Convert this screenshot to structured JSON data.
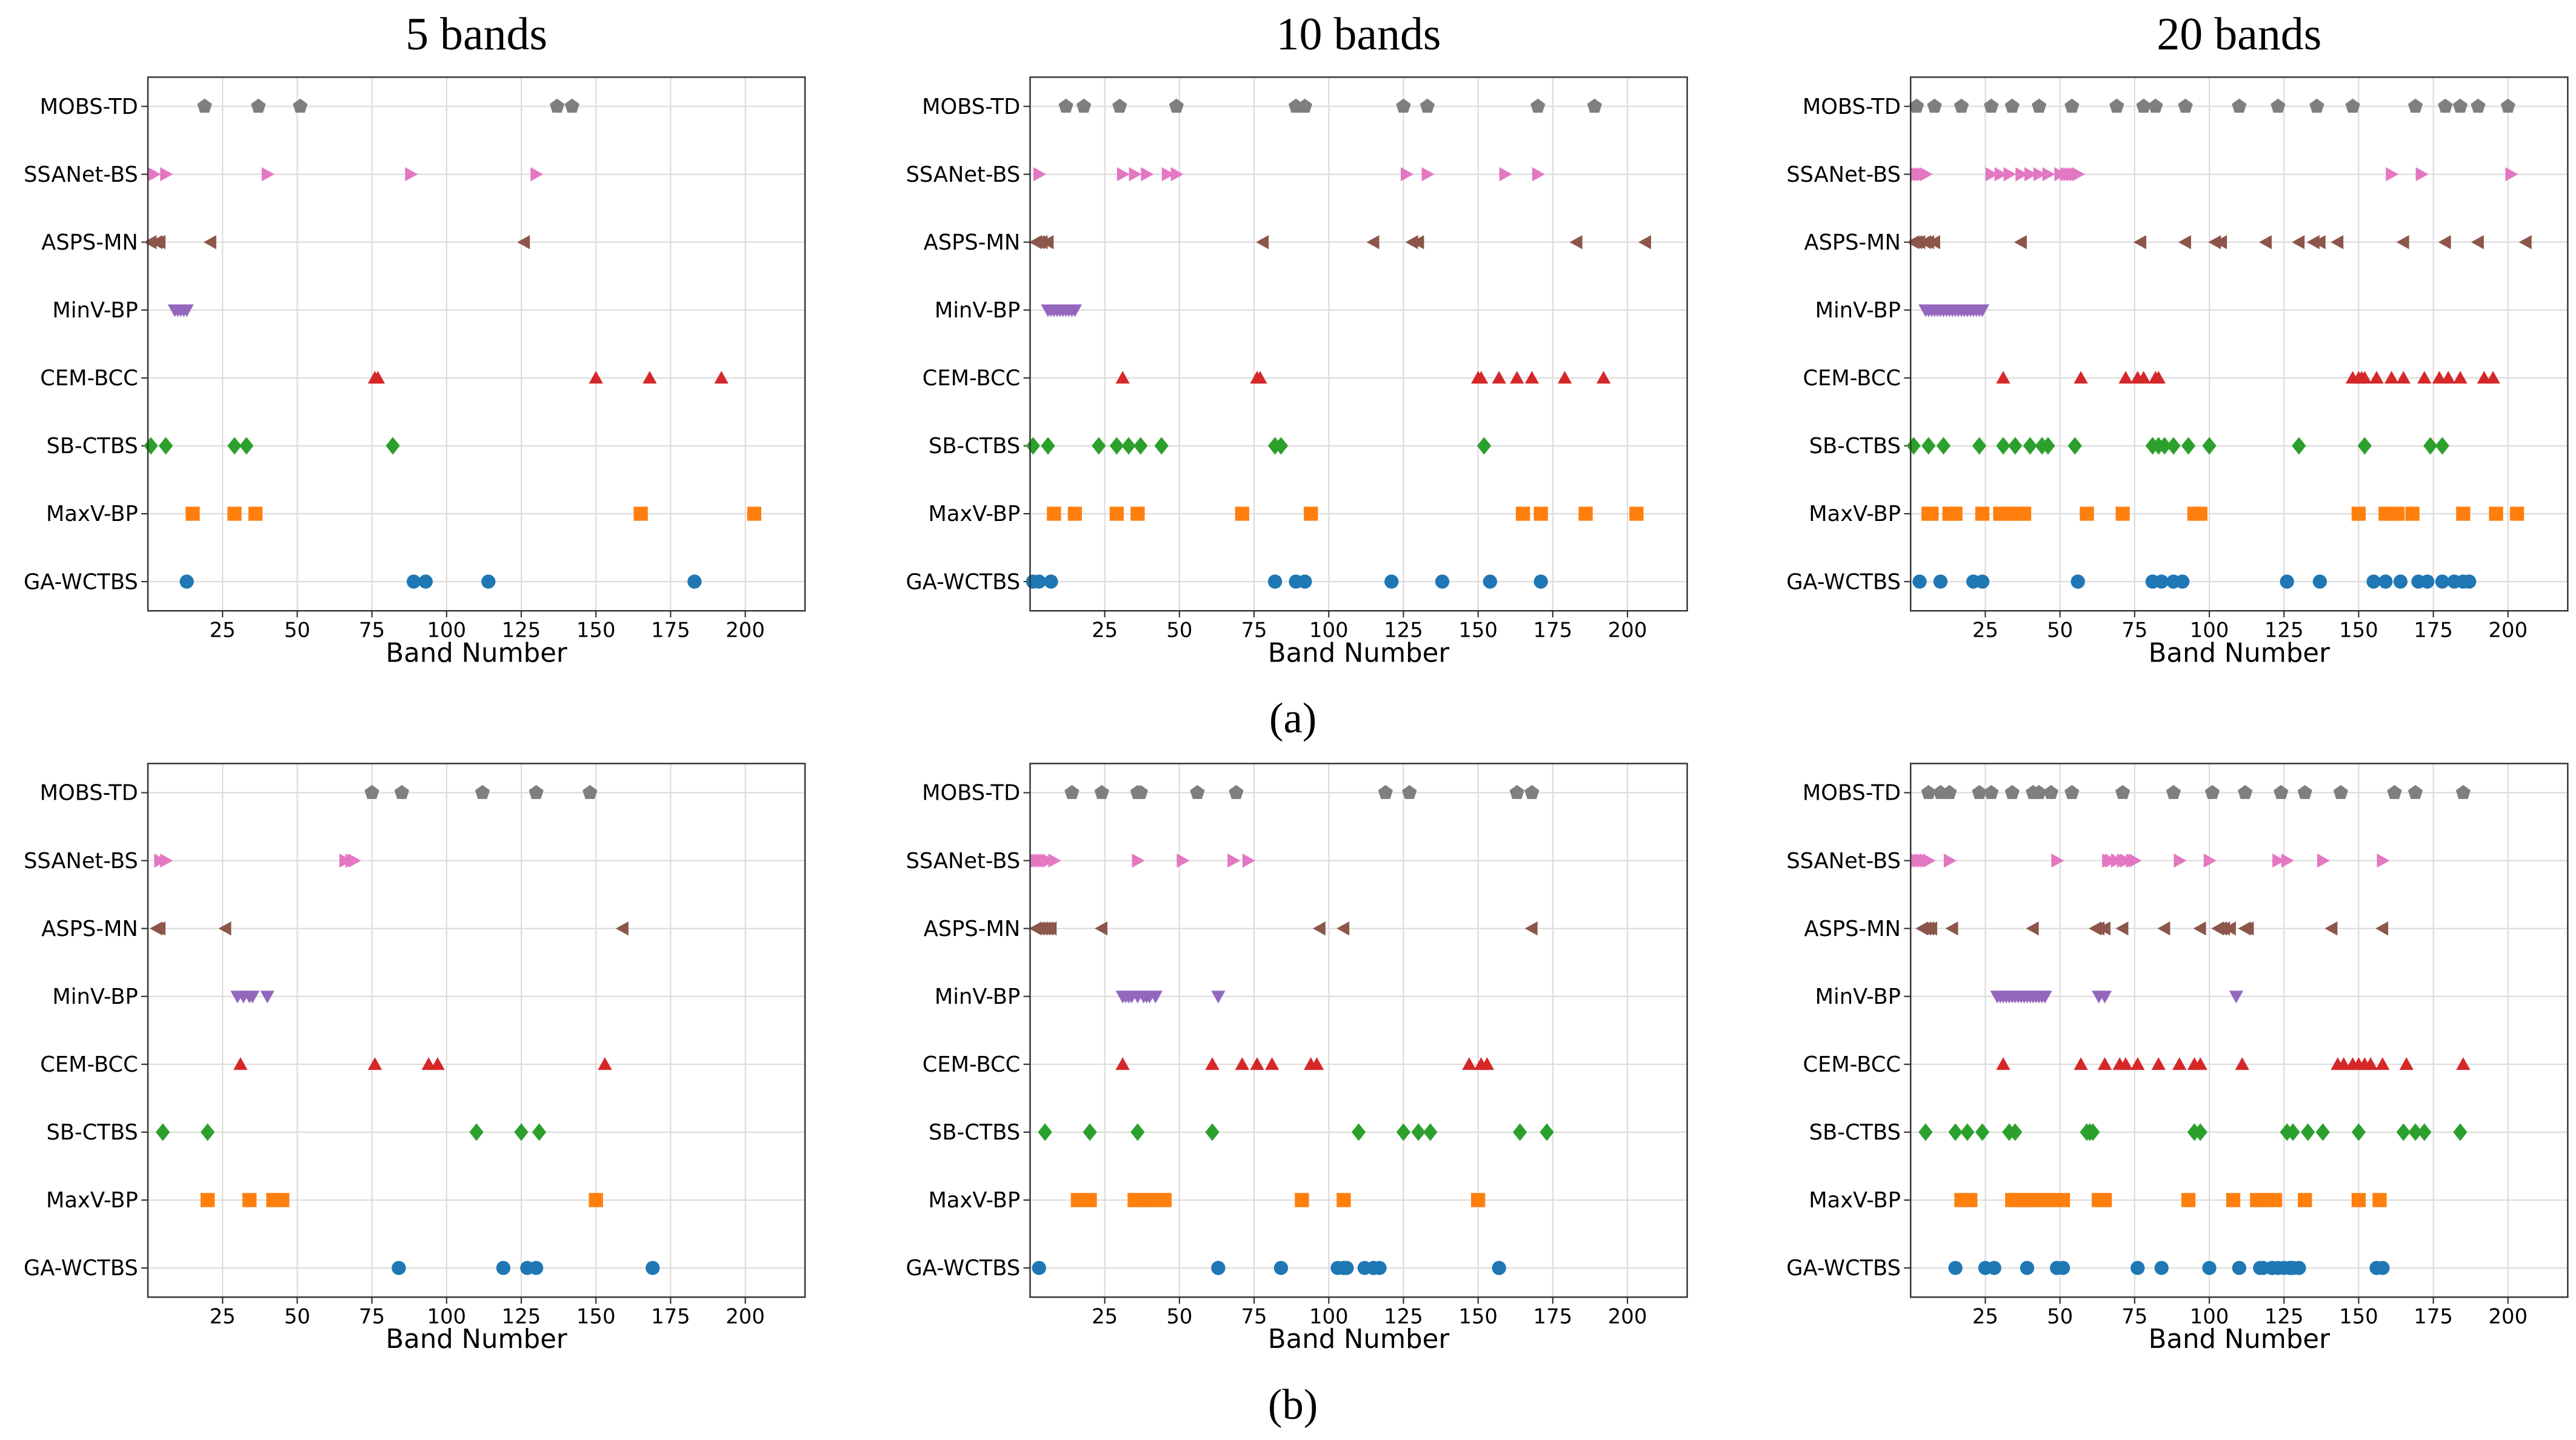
{
  "chart_data": [
    {
      "type": "scatter",
      "title": "5 bands",
      "xlabel": "Band Number",
      "xlim": [
        0,
        220
      ],
      "xticks": [
        25,
        50,
        75,
        100,
        125,
        150,
        175,
        200
      ],
      "grid": true,
      "series": [
        {
          "name": "GA-WCTBS",
          "color": "#1f77b4",
          "marker": "o",
          "values": [
            13,
            89,
            93,
            114,
            183
          ]
        },
        {
          "name": "MaxV-BP",
          "color": "#ff7f0e",
          "marker": "s",
          "values": [
            15,
            29,
            36,
            165,
            203
          ]
        },
        {
          "name": "SB-CTBS",
          "color": "#2ca02c",
          "marker": "D",
          "values": [
            1,
            6,
            29,
            33,
            82
          ]
        },
        {
          "name": "CEM-BCC",
          "color": "#d62728",
          "marker": "^",
          "values": [
            76,
            77,
            150,
            168,
            192
          ]
        },
        {
          "name": "MinV-BP",
          "color": "#9467bd",
          "marker": "v",
          "values": [
            9,
            10,
            11,
            12,
            13
          ]
        },
        {
          "name": "ASPS-MN",
          "color": "#8c564b",
          "marker": "<",
          "values": [
            1,
            3,
            4,
            21,
            126
          ]
        },
        {
          "name": "SSANet-BS",
          "color": "#e377c2",
          "marker": ">",
          "values": [
            2,
            6,
            40,
            88,
            130
          ]
        },
        {
          "name": "MOBS-TD",
          "color": "#7f7f7f",
          "marker": "p",
          "values": [
            19,
            37,
            51,
            137,
            142
          ]
        }
      ]
    },
    {
      "type": "scatter",
      "title": "10 bands",
      "xlabel": "Band Number",
      "xlim": [
        0,
        220
      ],
      "xticks": [
        25,
        50,
        75,
        100,
        125,
        150,
        175,
        200
      ],
      "grid": true,
      "series": [
        {
          "name": "GA-WCTBS",
          "color": "#1f77b4",
          "marker": "o",
          "values": [
            1,
            3,
            7,
            82,
            89,
            92,
            121,
            138,
            154,
            171
          ]
        },
        {
          "name": "MaxV-BP",
          "color": "#ff7f0e",
          "marker": "s",
          "values": [
            8,
            15,
            29,
            36,
            71,
            94,
            165,
            171,
            186,
            203
          ]
        },
        {
          "name": "SB-CTBS",
          "color": "#2ca02c",
          "marker": "D",
          "values": [
            1,
            6,
            23,
            29,
            33,
            37,
            44,
            82,
            84,
            152
          ]
        },
        {
          "name": "CEM-BCC",
          "color": "#d62728",
          "marker": "^",
          "values": [
            31,
            76,
            77,
            150,
            151,
            157,
            163,
            168,
            179,
            192
          ]
        },
        {
          "name": "MinV-BP",
          "color": "#9467bd",
          "marker": "v",
          "values": [
            6,
            7,
            8,
            9,
            10,
            11,
            12,
            13,
            14,
            15
          ]
        },
        {
          "name": "ASPS-MN",
          "color": "#8c564b",
          "marker": "<",
          "values": [
            2,
            3,
            4,
            6,
            78,
            115,
            128,
            130,
            183,
            206
          ]
        },
        {
          "name": "SSANet-BS",
          "color": "#e377c2",
          "marker": ">",
          "values": [
            3,
            31,
            35,
            39,
            46,
            49,
            126,
            133,
            159,
            170
          ]
        },
        {
          "name": "MOBS-TD",
          "color": "#7f7f7f",
          "marker": "p",
          "values": [
            12,
            18,
            30,
            49,
            89,
            92,
            125,
            133,
            170,
            189
          ]
        }
      ]
    },
    {
      "type": "scatter",
      "title": "20 bands",
      "xlabel": "Band Number",
      "xlim": [
        0,
        220
      ],
      "xticks": [
        25,
        50,
        75,
        100,
        125,
        150,
        175,
        200
      ],
      "grid": true,
      "series": [
        {
          "name": "GA-WCTBS",
          "color": "#1f77b4",
          "marker": "o",
          "values": [
            3,
            10,
            21,
            24,
            56,
            81,
            84,
            88,
            91,
            126,
            137,
            155,
            159,
            164,
            170,
            173,
            178,
            182,
            185,
            187
          ]
        },
        {
          "name": "MaxV-BP",
          "color": "#ff7f0e",
          "marker": "s",
          "values": [
            6,
            7,
            13,
            15,
            24,
            30,
            32,
            35,
            38,
            59,
            71,
            95,
            97,
            150,
            159,
            163,
            168,
            185,
            196,
            203
          ]
        },
        {
          "name": "SB-CTBS",
          "color": "#2ca02c",
          "marker": "D",
          "values": [
            1,
            6,
            11,
            23,
            31,
            35,
            40,
            44,
            46,
            55,
            81,
            83,
            85,
            88,
            93,
            100,
            130,
            152,
            174,
            178
          ]
        },
        {
          "name": "CEM-BCC",
          "color": "#d62728",
          "marker": "^",
          "values": [
            31,
            57,
            72,
            76,
            78,
            82,
            83,
            148,
            150,
            151,
            152,
            156,
            161,
            165,
            172,
            177,
            180,
            184,
            192,
            195
          ]
        },
        {
          "name": "MinV-BP",
          "color": "#9467bd",
          "marker": "v",
          "values": [
            5,
            6,
            7,
            8,
            9,
            10,
            11,
            12,
            13,
            14,
            15,
            16,
            17,
            18,
            19,
            20,
            21,
            22,
            23,
            24
          ]
        },
        {
          "name": "ASPS-MN",
          "color": "#8c564b",
          "marker": "<",
          "values": [
            1,
            2,
            3,
            5,
            6,
            8,
            37,
            77,
            92,
            102,
            104,
            119,
            130,
            135,
            137,
            143,
            165,
            179,
            190,
            206
          ]
        },
        {
          "name": "SSANet-BS",
          "color": "#e377c2",
          "marker": ">",
          "values": [
            2,
            3,
            4,
            5,
            27,
            30,
            33,
            37,
            40,
            43,
            46,
            50,
            52,
            53,
            54,
            55,
            56,
            161,
            171,
            201
          ]
        },
        {
          "name": "MOBS-TD",
          "color": "#7f7f7f",
          "marker": "p",
          "values": [
            2,
            8,
            17,
            27,
            34,
            43,
            54,
            69,
            78,
            82,
            92,
            110,
            123,
            136,
            148,
            169,
            179,
            184,
            190,
            200
          ]
        }
      ]
    },
    {
      "type": "scatter",
      "xlabel": "Band Number",
      "xlim": [
        0,
        220
      ],
      "xticks": [
        25,
        50,
        75,
        100,
        125,
        150,
        175,
        200
      ],
      "grid": true,
      "series": [
        {
          "name": "GA-WCTBS",
          "color": "#1f77b4",
          "marker": "o",
          "values": [
            84,
            119,
            127,
            130,
            169
          ]
        },
        {
          "name": "MaxV-BP",
          "color": "#ff7f0e",
          "marker": "s",
          "values": [
            20,
            34,
            42,
            45,
            150
          ]
        },
        {
          "name": "SB-CTBS",
          "color": "#2ca02c",
          "marker": "D",
          "values": [
            5,
            20,
            110,
            125,
            131
          ]
        },
        {
          "name": "CEM-BCC",
          "color": "#d62728",
          "marker": "^",
          "values": [
            31,
            76,
            94,
            97,
            153
          ]
        },
        {
          "name": "MinV-BP",
          "color": "#9467bd",
          "marker": "v",
          "values": [
            30,
            32,
            34,
            35,
            40
          ]
        },
        {
          "name": "ASPS-MN",
          "color": "#8c564b",
          "marker": "<",
          "values": [
            3,
            4,
            26,
            159
          ]
        },
        {
          "name": "SSANet-BS",
          "color": "#e377c2",
          "marker": ">",
          "values": [
            4,
            6,
            66,
            68,
            69
          ]
        },
        {
          "name": "MOBS-TD",
          "color": "#7f7f7f",
          "marker": "p",
          "values": [
            75,
            85,
            112,
            130,
            148
          ]
        }
      ]
    },
    {
      "type": "scatter",
      "xlabel": "Band Number",
      "xlim": [
        0,
        220
      ],
      "xticks": [
        25,
        50,
        75,
        100,
        125,
        150,
        175,
        200
      ],
      "grid": true,
      "series": [
        {
          "name": "GA-WCTBS",
          "color": "#1f77b4",
          "marker": "o",
          "values": [
            3,
            63,
            84,
            103,
            105,
            106,
            112,
            115,
            117,
            157
          ]
        },
        {
          "name": "MaxV-BP",
          "color": "#ff7f0e",
          "marker": "s",
          "values": [
            16,
            20,
            35,
            37,
            39,
            42,
            45,
            91,
            105,
            150
          ]
        },
        {
          "name": "SB-CTBS",
          "color": "#2ca02c",
          "marker": "D",
          "values": [
            5,
            20,
            36,
            61,
            110,
            125,
            130,
            134,
            164,
            173
          ]
        },
        {
          "name": "CEM-BCC",
          "color": "#d62728",
          "marker": "^",
          "values": [
            31,
            61,
            71,
            76,
            81,
            94,
            96,
            147,
            151,
            153
          ]
        },
        {
          "name": "MinV-BP",
          "color": "#9467bd",
          "marker": "v",
          "values": [
            31,
            32,
            33,
            34,
            36,
            38,
            39,
            40,
            42,
            63
          ]
        },
        {
          "name": "ASPS-MN",
          "color": "#8c564b",
          "marker": "<",
          "values": [
            2,
            3,
            4,
            5,
            6,
            7,
            24,
            97,
            105,
            168
          ]
        },
        {
          "name": "SSANet-BS",
          "color": "#e377c2",
          "marker": ">",
          "values": [
            2,
            3,
            4,
            5,
            6,
            8,
            36,
            51,
            68,
            73
          ]
        },
        {
          "name": "MOBS-TD",
          "color": "#7f7f7f",
          "marker": "p",
          "values": [
            14,
            24,
            36,
            37,
            56,
            69,
            119,
            127,
            163,
            168
          ]
        }
      ]
    },
    {
      "type": "scatter",
      "xlabel": "Band Number",
      "xlim": [
        0,
        220
      ],
      "xticks": [
        25,
        50,
        75,
        100,
        125,
        150,
        175,
        200
      ],
      "grid": true,
      "series": [
        {
          "name": "GA-WCTBS",
          "color": "#1f77b4",
          "marker": "o",
          "values": [
            15,
            25,
            28,
            39,
            49,
            51,
            76,
            84,
            100,
            110,
            117,
            118,
            121,
            123,
            125,
            127,
            128,
            130,
            156,
            158
          ]
        },
        {
          "name": "MaxV-BP",
          "color": "#ff7f0e",
          "marker": "s",
          "values": [
            17,
            20,
            34,
            36,
            38,
            40,
            42,
            45,
            48,
            51,
            63,
            65,
            93,
            108,
            116,
            119,
            122,
            132,
            150,
            157
          ]
        },
        {
          "name": "SB-CTBS",
          "color": "#2ca02c",
          "marker": "D",
          "values": [
            5,
            15,
            19,
            24,
            33,
            35,
            59,
            60,
            61,
            95,
            97,
            126,
            128,
            133,
            138,
            150,
            165,
            169,
            172,
            184
          ]
        },
        {
          "name": "CEM-BCC",
          "color": "#d62728",
          "marker": "^",
          "values": [
            31,
            57,
            65,
            70,
            72,
            76,
            83,
            90,
            95,
            97,
            111,
            143,
            145,
            148,
            150,
            152,
            154,
            158,
            166,
            185
          ]
        },
        {
          "name": "MinV-BP",
          "color": "#9467bd",
          "marker": "v",
          "values": [
            29,
            30,
            31,
            32,
            33,
            34,
            35,
            36,
            37,
            38,
            39,
            40,
            41,
            42,
            43,
            44,
            45,
            63,
            65,
            109
          ]
        },
        {
          "name": "ASPS-MN",
          "color": "#8c564b",
          "marker": "<",
          "values": [
            4,
            5,
            6,
            7,
            14,
            41,
            62,
            63,
            65,
            71,
            85,
            97,
            103,
            104,
            105,
            107,
            112,
            113,
            141,
            158
          ]
        },
        {
          "name": "SSANet-BS",
          "color": "#e377c2",
          "marker": ">",
          "values": [
            2,
            3,
            4,
            5,
            6,
            13,
            49,
            66,
            67,
            69,
            71,
            72,
            74,
            75,
            90,
            100,
            123,
            126,
            138,
            158
          ]
        },
        {
          "name": "MOBS-TD",
          "color": "#7f7f7f",
          "marker": "p",
          "values": [
            6,
            10,
            13,
            23,
            27,
            34,
            41,
            43,
            47,
            54,
            71,
            88,
            101,
            112,
            124,
            132,
            144,
            162,
            169,
            185
          ]
        }
      ]
    }
  ],
  "captions": [
    "(a)",
    "(b)"
  ]
}
